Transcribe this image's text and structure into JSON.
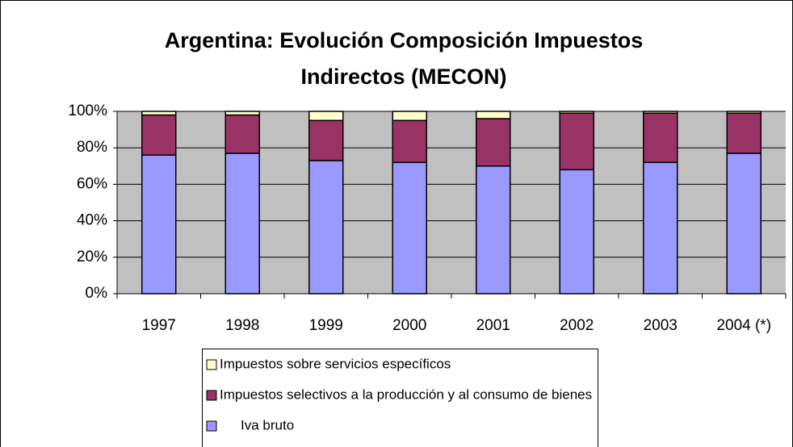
{
  "chart_data": {
    "type": "stacked_bar",
    "title": [
      "Argentina: Evolución Composición Impuestos",
      "Indirectos (MECON)"
    ],
    "categories": [
      "1997",
      "1998",
      "1999",
      "2000",
      "2001",
      "2002",
      "2003",
      "2004 (*)"
    ],
    "series": [
      {
        "name": "Iva bruto",
        "color": "#9999ff",
        "values": [
          76,
          77,
          73,
          72,
          70,
          68,
          72,
          77
        ]
      },
      {
        "name": "Impuestos selectivos a la producción y al consumo de bienes",
        "color": "#993366",
        "values": [
          22,
          21,
          22,
          23,
          26,
          31,
          27,
          22
        ]
      },
      {
        "name": "Impuestos sobre servicios específicos",
        "color": "#ffffcc",
        "values": [
          2,
          2,
          5,
          5,
          4,
          1,
          1,
          1
        ]
      }
    ],
    "ylim": [
      0,
      100
    ],
    "yticks": [
      {
        "value": 0,
        "label": "0%"
      },
      {
        "value": 20,
        "label": "20%"
      },
      {
        "value": 40,
        "label": "40%"
      },
      {
        "value": 60,
        "label": "60%"
      },
      {
        "value": 80,
        "label": "80%"
      },
      {
        "value": 100,
        "label": "100%"
      }
    ],
    "grid": true
  }
}
